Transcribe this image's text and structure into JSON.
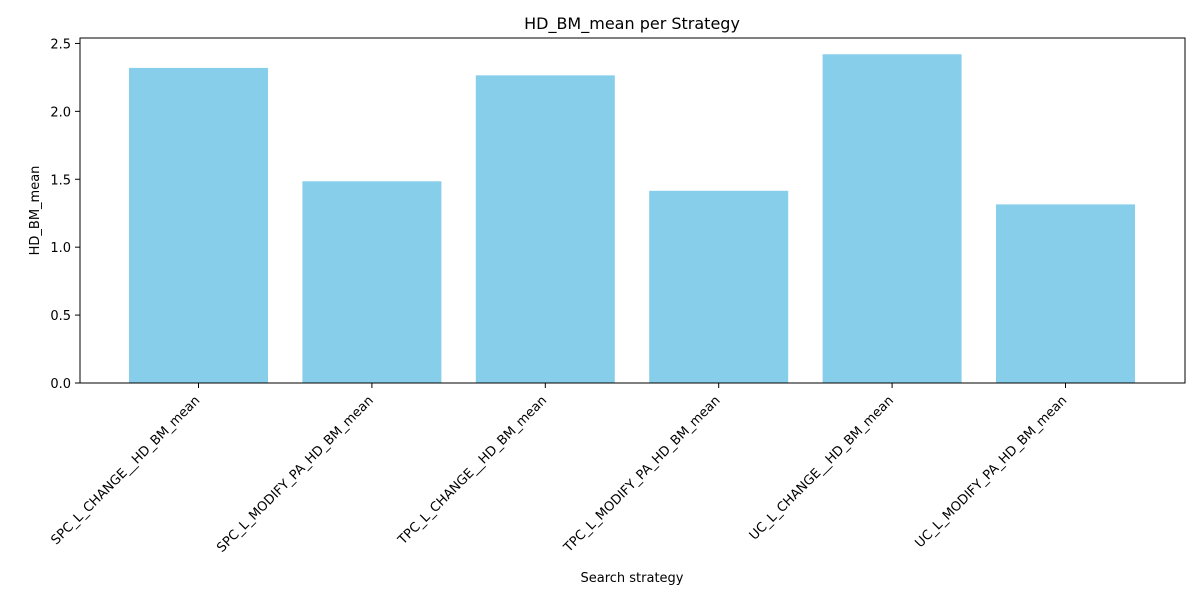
{
  "chart_data": {
    "type": "bar",
    "title": "HD_BM_mean per Strategy",
    "xlabel": "Search strategy",
    "ylabel": "HD_BM_mean",
    "categories": [
      "SPC_L_CHANGE__HD_BM_mean",
      "SPC_L_MODIFY_PA_HD_BM_mean",
      "TPC_L_CHANGE__HD_BM_mean",
      "TPC_L_MODIFY_PA_HD_BM_mean",
      "UC_L_CHANGE__HD_BM_mean",
      "UC_L_MODIFY_PA_HD_BM_mean"
    ],
    "values": [
      2.32,
      1.485,
      2.265,
      1.415,
      2.42,
      1.315
    ],
    "ylim": [
      0,
      2.54
    ],
    "yticks": [
      0.0,
      0.5,
      1.0,
      1.5,
      2.0,
      2.5
    ],
    "ytick_labels": [
      "0.0",
      "0.5",
      "1.0",
      "1.5",
      "2.0",
      "2.5"
    ],
    "bar_color": "#87ceeb",
    "grid": false,
    "legend": "none"
  }
}
